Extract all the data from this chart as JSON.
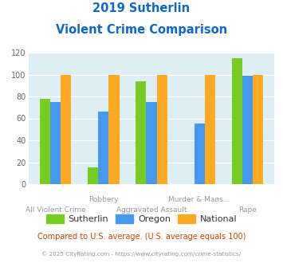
{
  "title_line1": "2019 Sutherlin",
  "title_line2": "Violent Crime Comparison",
  "categories": [
    "All Violent Crime",
    "Robbery",
    "Aggravated Assault",
    "Murder & Mans...",
    "Rape"
  ],
  "row1_indices": [
    1,
    3
  ],
  "row2_indices": [
    0,
    2,
    4
  ],
  "row1_labels": [
    "Robbery",
    "Murder & Mans..."
  ],
  "row2_labels": [
    "All Violent Crime",
    "Aggravated Assault",
    "Rape"
  ],
  "sutherlin": [
    78,
    15,
    94,
    0,
    115
  ],
  "oregon": [
    75,
    66,
    75,
    55,
    99
  ],
  "national": [
    100,
    100,
    100,
    100,
    100
  ],
  "colors": {
    "sutherlin": "#77cc22",
    "oregon": "#4499ee",
    "national": "#ffaa22"
  },
  "ylim": [
    0,
    120
  ],
  "yticks": [
    0,
    20,
    40,
    60,
    80,
    100,
    120
  ],
  "title_color": "#1166cc",
  "bg_color": "#ddeef5",
  "legend_labels": [
    "Sutherlin",
    "Oregon",
    "National"
  ],
  "footnote": "Compared to U.S. average. (U.S. average equals 100)",
  "copyright": "© 2025 CityRating.com - https://www.cityrating.com/crime-statistics/",
  "footnote_color": "#cc4400",
  "copyright_color": "#999999",
  "bar_width": 0.22
}
